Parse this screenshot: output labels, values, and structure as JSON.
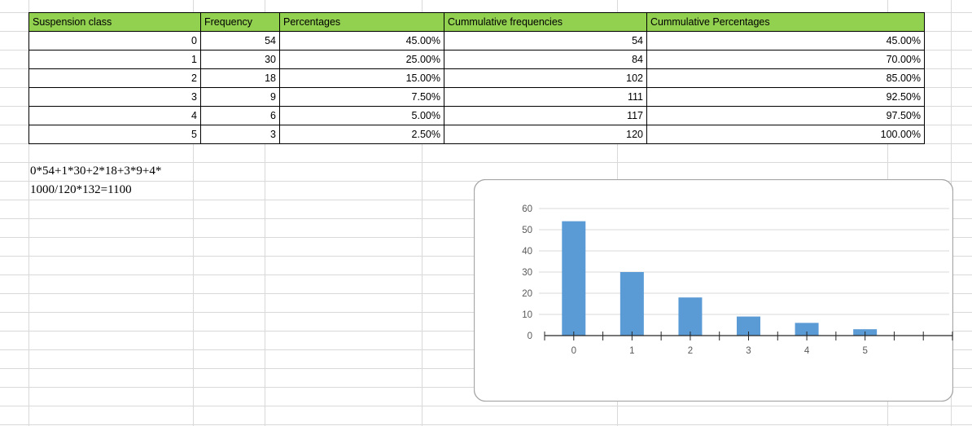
{
  "table": {
    "columns": [
      "Suspension class",
      "Frequency",
      "Percentages",
      "Cummulative frequencies",
      "Cummulative Percentages"
    ],
    "rows": [
      [
        "0",
        "54",
        "45.00%",
        "54",
        "45.00%"
      ],
      [
        "1",
        "30",
        "25.00%",
        "84",
        "70.00%"
      ],
      [
        "2",
        "18",
        "15.00%",
        "102",
        "85.00%"
      ],
      [
        "3",
        "9",
        "7.50%",
        "111",
        "92.50%"
      ],
      [
        "4",
        "6",
        "5.00%",
        "117",
        "97.50%"
      ],
      [
        "5",
        "3",
        "2.50%",
        "120",
        "100.00%"
      ]
    ],
    "header_bg": "#92D050"
  },
  "notes": {
    "line1": "0*54+1*30+2*18+3*9+4*",
    "line2": "1000/120*132=1100"
  },
  "chart_data": {
    "type": "bar",
    "categories": [
      "0",
      "1",
      "2",
      "3",
      "4",
      "5"
    ],
    "values": [
      54,
      30,
      18,
      9,
      6,
      3
    ],
    "title": "",
    "xlabel": "",
    "ylabel": "",
    "ylim": [
      0,
      60
    ],
    "yticks": [
      0,
      10,
      20,
      30,
      40,
      50,
      60
    ],
    "grid": true,
    "legend": false,
    "bar_color": "#5B9BD5",
    "axis_color": "#262626",
    "label_color": "#595959",
    "gridline_color": "#D9D9D9",
    "frame_color": "#A6A6A6"
  },
  "colors": {
    "sheet_gridline": "#D9D9D9",
    "table_border": "#000000",
    "header_green": "#92D050"
  }
}
